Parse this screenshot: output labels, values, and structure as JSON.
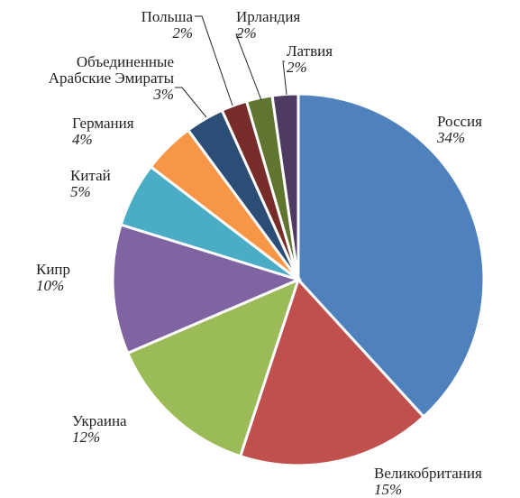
{
  "chart_data": {
    "type": "pie",
    "categories": [
      "Россия",
      "Великобритания",
      "Украина",
      "Кипр",
      "Китай",
      "Германия",
      "Объединенные\nАрабские Эмираты",
      "Польша",
      "Ирландия",
      "Латвия"
    ],
    "values": [
      34,
      15,
      12,
      10,
      5,
      4,
      3,
      2,
      2,
      2
    ],
    "value_labels": [
      "34%",
      "15%",
      "12%",
      "10%",
      "5%",
      "4%",
      "3%",
      "2%",
      "2%",
      "2%"
    ],
    "colors": [
      "#4f81bd",
      "#c0504d",
      "#9bbb59",
      "#8064a2",
      "#4bacc6",
      "#f79646",
      "#2c4d75",
      "#772c2a",
      "#5f7530",
      "#4d3b62"
    ]
  }
}
